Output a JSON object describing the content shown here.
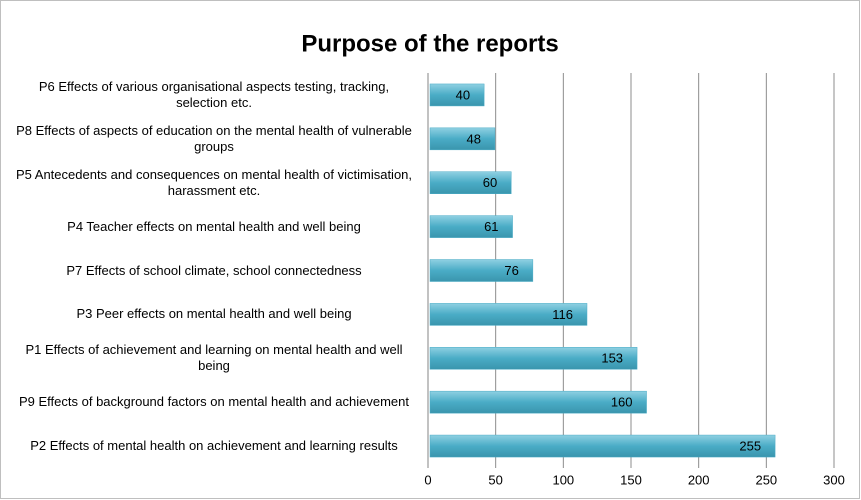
{
  "chart_data": {
    "type": "bar",
    "orientation": "horizontal",
    "title": "Purpose of the reports",
    "categories": [
      "P6 Effects of various organisational aspects testing, tracking, selection etc.",
      "P8 Effects of aspects of education on the mental health of vulnerable groups",
      "P5 Antecedents and consequences on mental health of victimisation, harassment etc.",
      "P4 Teacher effects on mental health and well being",
      "P7 Effects of school climate, school connectedness",
      "P3 Peer effects on mental health and well being",
      "P1 Effects of achievement and learning on mental health and well being",
      "P9 Effects of background factors on mental health and achievement",
      "P2 Effects of mental health on achievement and learning results"
    ],
    "values": [
      40,
      48,
      60,
      61,
      76,
      116,
      153,
      160,
      255
    ],
    "color": "#4aacc6",
    "xlim": [
      0,
      300
    ],
    "xticks": [
      0,
      50,
      100,
      150,
      200,
      250,
      300
    ],
    "grid": true
  }
}
